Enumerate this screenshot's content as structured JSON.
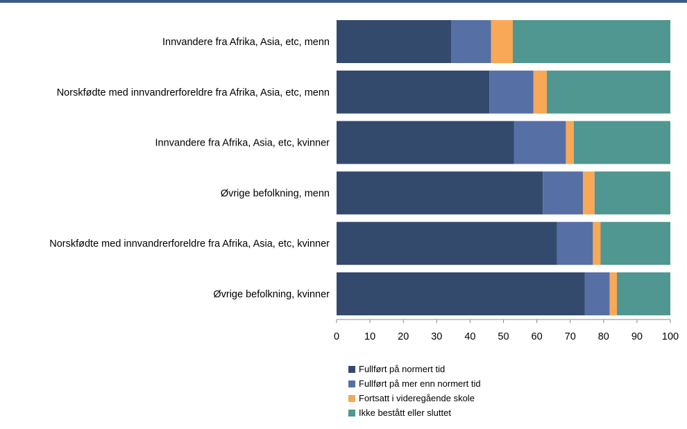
{
  "chart_data": {
    "type": "bar",
    "orientation": "horizontal",
    "stacked": true,
    "title": "",
    "xlabel": "",
    "ylabel": "",
    "xlim": [
      0,
      100
    ],
    "xticks": [
      "0",
      "10",
      "20",
      "30",
      "40",
      "50",
      "60",
      "70",
      "80",
      "90",
      "100"
    ],
    "grid": false,
    "legend_position": "bottom",
    "categories": [
      "Innvandere fra Afrika, Asia, etc, menn",
      "Norskfødte med innvandrerforeldre fra Afrika, Asia, etc, menn",
      "Innvandere fra Afrika, Asia, etc, kvinner",
      "Øvrige befolkning, menn",
      "Norskfødte med innvandrerforeldre fra Afrika, Asia, etc, kvinner",
      "Øvrige befolkning, kvinner"
    ],
    "series": [
      {
        "name": "Fullført på normert tid",
        "color": "#344a6d",
        "values": [
          34.3,
          45.8,
          53.2,
          61.8,
          66.0,
          74.4
        ]
      },
      {
        "name": "Fullført på mer enn normert tid",
        "color": "#5670a6",
        "values": [
          12.0,
          13.2,
          15.5,
          12.0,
          10.8,
          7.4
        ]
      },
      {
        "name": "Fortsatt i videregående skole",
        "color": "#f8a857",
        "values": [
          6.5,
          4.0,
          2.4,
          3.5,
          2.3,
          2.2
        ]
      },
      {
        "name": "Ikke bestått eller sluttet",
        "color": "#4f9790",
        "values": [
          47.2,
          37.0,
          28.9,
          22.7,
          20.9,
          16.0
        ]
      }
    ]
  }
}
